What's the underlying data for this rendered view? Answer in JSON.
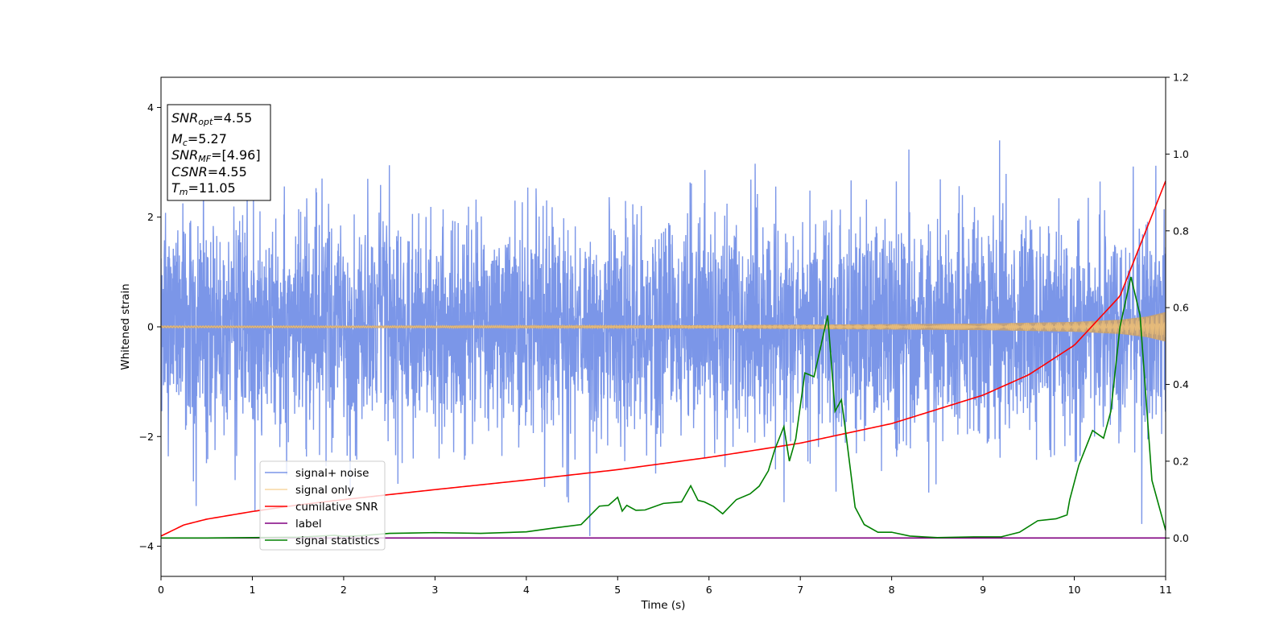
{
  "chart_data": {
    "type": "line",
    "xlabel": "Time (s)",
    "ylabel": "Whitened strain",
    "xlim": [
      0,
      11
    ],
    "ylim_left": [
      -4.55,
      4.55
    ],
    "ylim_right": [
      -0.1,
      1.2
    ],
    "xticks": [
      "0",
      "1",
      "2",
      "3",
      "4",
      "5",
      "6",
      "7",
      "8",
      "9",
      "10",
      "11"
    ],
    "yticks_left": [
      "4",
      "2",
      "0",
      "−2",
      "−4"
    ],
    "yticks_right": [
      "1.2",
      "1.0",
      "0.8",
      "0.6",
      "0.4",
      "0.2",
      "0.0"
    ],
    "grid": false,
    "legend_position": "lower-left",
    "infobox": {
      "snr_opt": {
        "sym": "SNR",
        "sub": "opt",
        "value": "=4.55"
      },
      "mc": {
        "sym": "M",
        "sub": "c",
        "value": "=5.27"
      },
      "snr_mf": {
        "sym": "SNR",
        "sub": "MF",
        "value": "=[4.96]"
      },
      "csnr": {
        "sym": "CSNR",
        "value": "=4.55"
      },
      "tm": {
        "sym": "T",
        "sub": "m",
        "value": "=11.05"
      }
    },
    "series": [
      {
        "name": "signal+ noise",
        "axis": "left",
        "color": "#7b96e8",
        "noise_std": 1.0,
        "noise_extremes": [
          -4.12,
          4.18
        ]
      },
      {
        "name": "signal only",
        "axis": "left",
        "color": "#f5c67a",
        "envelope_x": [
          0,
          2,
          4,
          6,
          7,
          8,
          9,
          10,
          10.5,
          10.8,
          11
        ],
        "envelope_amp": [
          0.02,
          0.02,
          0.025,
          0.03,
          0.04,
          0.05,
          0.06,
          0.09,
          0.13,
          0.19,
          0.27
        ]
      },
      {
        "name": "cumilative SNR",
        "axis": "right",
        "color": "#ff0000",
        "x": [
          0,
          0.25,
          0.5,
          1,
          1.5,
          2,
          3,
          4,
          5,
          6,
          7,
          8,
          9,
          9.5,
          10,
          10.5,
          11
        ],
        "values": [
          0.005,
          0.034,
          0.049,
          0.069,
          0.086,
          0.1,
          0.126,
          0.151,
          0.178,
          0.21,
          0.247,
          0.298,
          0.372,
          0.425,
          0.502,
          0.63,
          0.93
        ]
      },
      {
        "name": "label",
        "axis": "right",
        "color": "#800080",
        "x": [
          0,
          11
        ],
        "values": [
          0.0,
          0.0
        ]
      },
      {
        "name": "signal statistics",
        "axis": "right",
        "color": "#008000",
        "x": [
          0,
          0.5,
          1,
          1.5,
          1.9,
          2,
          2.2,
          2.5,
          3,
          3.5,
          4,
          4.3,
          4.6,
          4.8,
          4.9,
          5.0,
          5.05,
          5.1,
          5.2,
          5.3,
          5.5,
          5.7,
          5.8,
          5.88,
          5.95,
          6.05,
          6.15,
          6.3,
          6.45,
          6.55,
          6.65,
          6.72,
          6.82,
          6.88,
          6.95,
          7.05,
          7.15,
          7.3,
          7.38,
          7.45,
          7.5,
          7.6,
          7.7,
          7.85,
          8.0,
          8.2,
          8.5,
          8.9,
          9.2,
          9.4,
          9.6,
          9.8,
          9.92,
          9.95,
          10.05,
          10.2,
          10.32,
          10.4,
          10.5,
          10.62,
          10.72,
          10.85,
          11
        ],
        "values": [
          0.0,
          0.0,
          0.001,
          0.002,
          0.007,
          0.004,
          0.006,
          0.012,
          0.014,
          0.012,
          0.016,
          0.026,
          0.035,
          0.083,
          0.085,
          0.106,
          0.07,
          0.085,
          0.072,
          0.073,
          0.09,
          0.094,
          0.136,
          0.098,
          0.094,
          0.082,
          0.063,
          0.1,
          0.115,
          0.135,
          0.175,
          0.23,
          0.29,
          0.2,
          0.258,
          0.43,
          0.42,
          0.58,
          0.33,
          0.36,
          0.27,
          0.08,
          0.035,
          0.015,
          0.015,
          0.005,
          0.001,
          0.003,
          0.003,
          0.015,
          0.045,
          0.05,
          0.06,
          0.1,
          0.19,
          0.28,
          0.26,
          0.33,
          0.55,
          0.68,
          0.58,
          0.15,
          0.02
        ]
      }
    ]
  }
}
